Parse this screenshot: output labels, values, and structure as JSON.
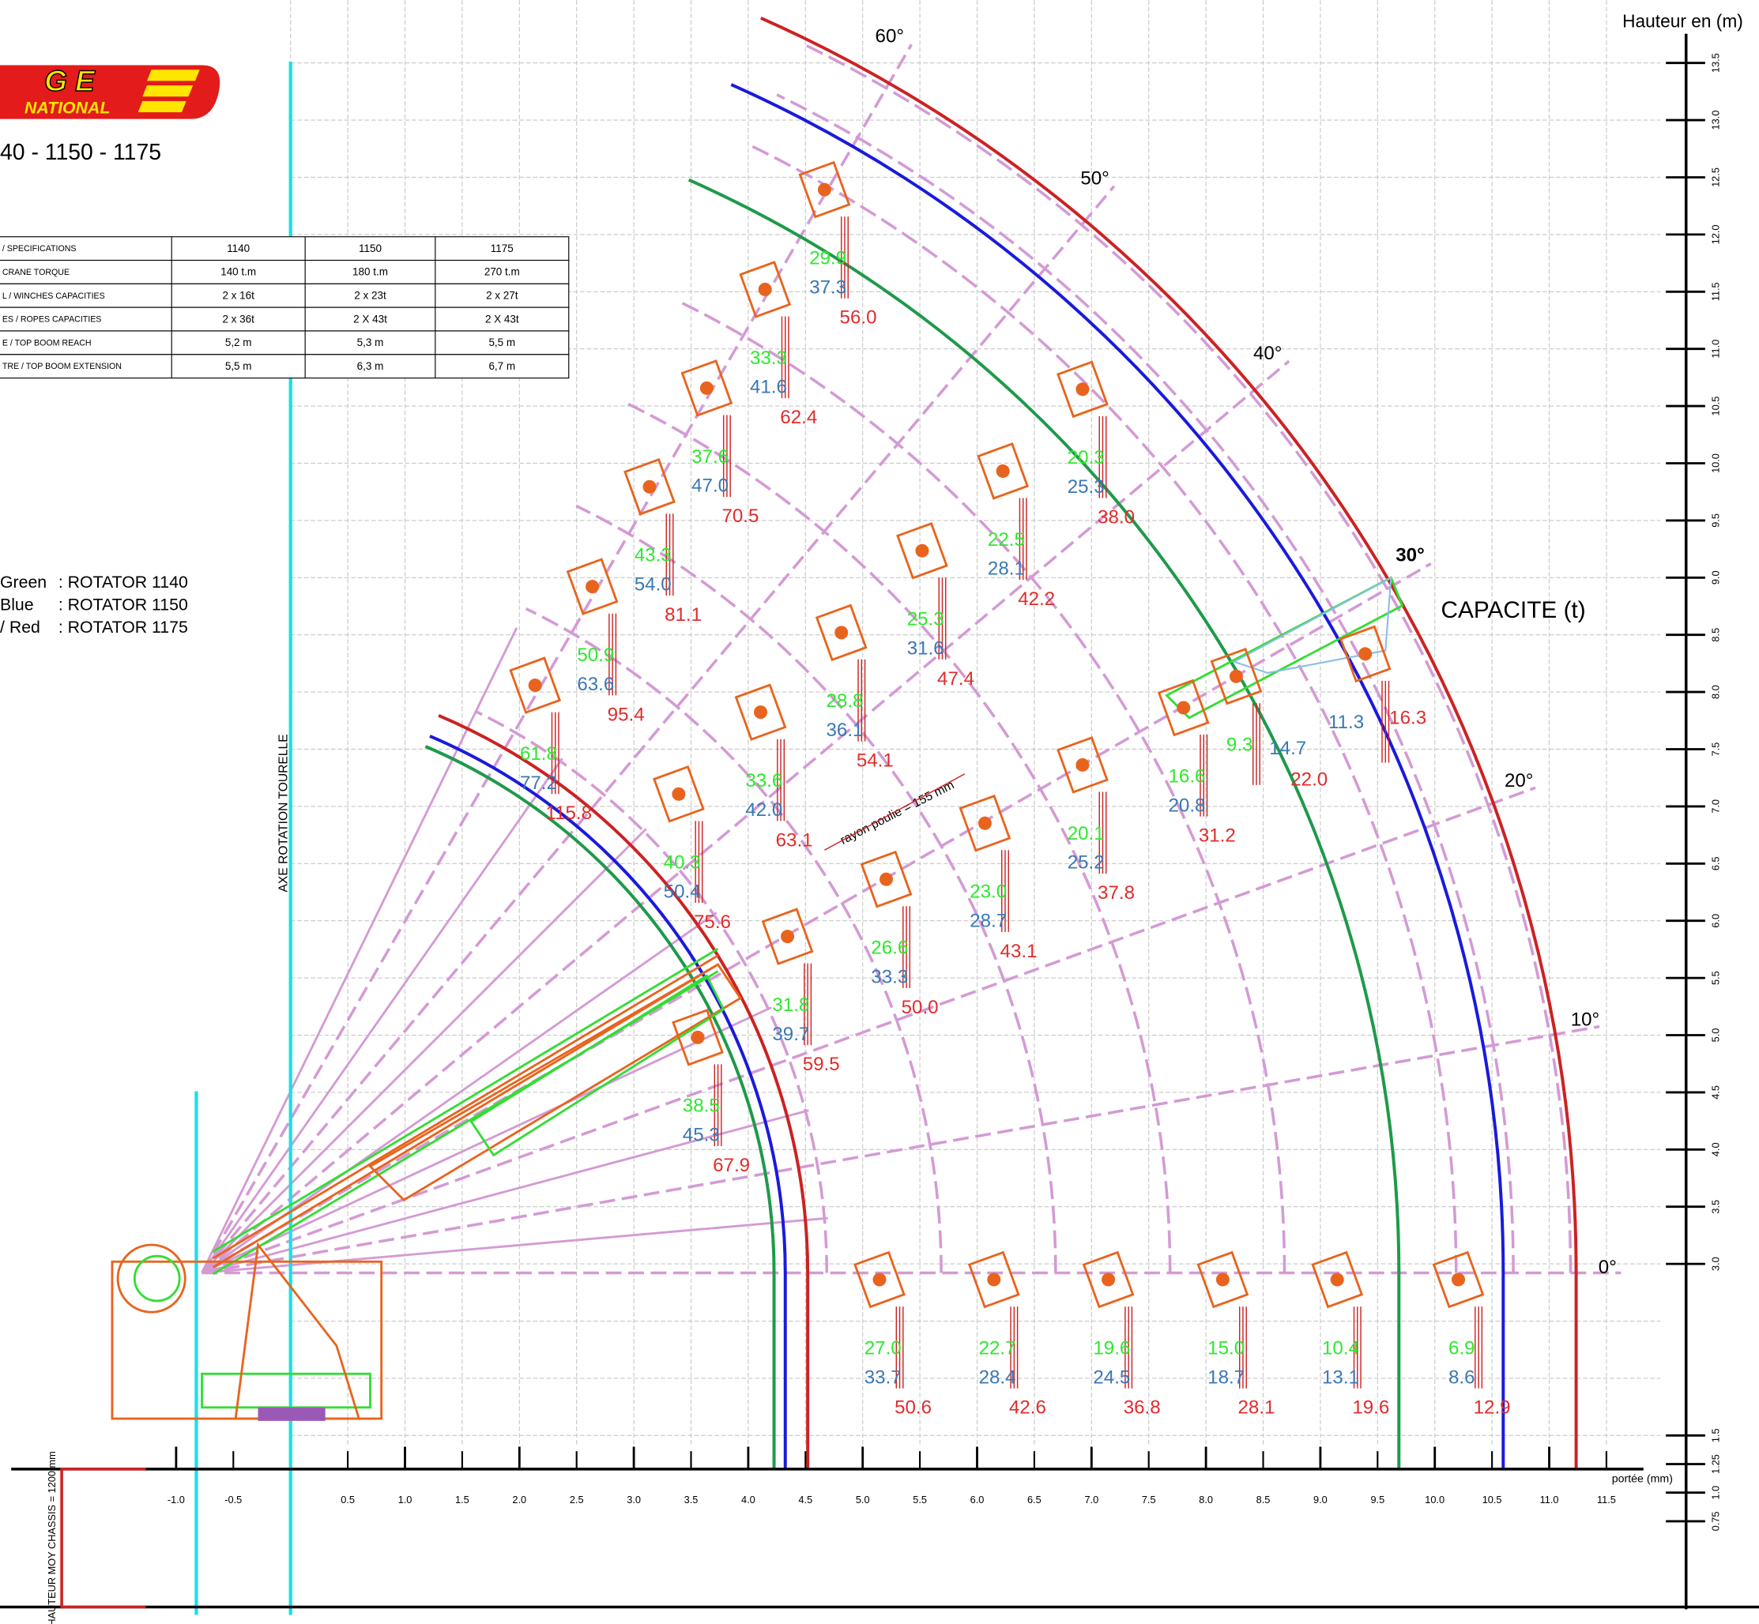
{
  "logo": {
    "top": "G E",
    "bottom": "NATIONAL"
  },
  "title": "40 - 1150 - 1175",
  "spec_table": {
    "rows": [
      [
        "/ SPECIFICATIONS",
        "1140",
        "1150",
        "1175"
      ],
      [
        "CRANE TORQUE",
        "140 t.m",
        "180 t.m",
        "270 t.m"
      ],
      [
        "L / WINCHES CAPACITIES",
        "2 x 16t",
        "2 x 23t",
        "2 x 27t"
      ],
      [
        "ES / ROPES CAPACITIES",
        "2 x 36t",
        "2 X 43t",
        "2 X 43t"
      ],
      [
        "E / TOP BOOM REACH",
        "5,2 m",
        "5,3 m",
        "5,5 m"
      ],
      [
        "TRE / TOP BOOM EXTENSION",
        "5,5 m",
        "6,3 m",
        "6,7 m"
      ]
    ]
  },
  "legend": [
    {
      "color": "Green",
      "label": ": ROTATOR 1140"
    },
    {
      "color": "Blue",
      "label": ": ROTATOR 1150"
    },
    {
      "color": "/ Red",
      "label": ": ROTATOR 1175"
    }
  ],
  "axis_labels": {
    "height": "Hauteur en (m)",
    "reach": "portée (mm)",
    "rotation_axis": "AXE ROTATION TOURELLE",
    "chassis_height": "HAUTEUR MOY CHASSIS = 1200 mm"
  },
  "capacity_title": "CAPACITE (t)",
  "pulley_note": "rayon  poulie = 155 mm",
  "angles": [
    "60°",
    "50°",
    "40°",
    "30°",
    "20°",
    "10°",
    "0°"
  ],
  "reach_ticks": [
    {
      "value": -1,
      "label": "-1.0"
    },
    -0.5,
    0.5,
    {
      "value": 1,
      "label": "1.0"
    },
    1.5,
    {
      "value": 2,
      "label": "2.0"
    },
    2.5,
    {
      "value": 3,
      "label": "3.0"
    },
    3.5,
    {
      "value": 4,
      "label": "4.0"
    },
    4.5,
    {
      "value": 5,
      "label": "5.0"
    },
    5.5,
    {
      "value": 6,
      "label": "6.0"
    },
    6.5,
    {
      "value": 7,
      "label": "7.0"
    },
    7.5,
    {
      "value": 8,
      "label": "8.0"
    },
    8.5,
    {
      "value": 9,
      "label": "9.0"
    },
    9.5,
    {
      "value": 10,
      "label": "10.0"
    },
    10.5,
    {
      "value": 11,
      "label": "11.0"
    },
    11.5
  ],
  "height_ticks": [
    13.5,
    {
      "value": 13,
      "label": "13.0"
    },
    12.5,
    {
      "value": 12,
      "label": "12.0"
    },
    11.5,
    {
      "value": 11,
      "label": "11.0"
    },
    10.5,
    {
      "value": 10,
      "label": "10.0"
    },
    9.5,
    {
      "value": 9,
      "label": "9.0"
    },
    8.5,
    {
      "value": 8,
      "label": "8.0"
    },
    7.5,
    {
      "value": 7,
      "label": "7.0"
    },
    6.5,
    {
      "value": 6,
      "label": "6.0"
    },
    5.5,
    {
      "value": 5,
      "label": "5.0"
    },
    4.5,
    {
      "value": 4,
      "label": "4.0"
    },
    3.5,
    {
      "value": 3,
      "label": "3.0"
    },
    1.5,
    1.25,
    {
      "value": 1,
      "label": "1.0"
    },
    0.75
  ],
  "capacities": [
    {
      "green": "29.9",
      "blue": "37.3",
      "red": "56.0"
    },
    {
      "green": "33.3",
      "blue": "41.6",
      "red": "62.4"
    },
    {
      "green": "37.6",
      "blue": "47.0",
      "red": "70.5"
    },
    {
      "green": "43.3",
      "blue": "54.0",
      "red": "81.1"
    },
    {
      "green": "50.9",
      "blue": "63.6",
      "red": "95.4"
    },
    {
      "green": "61.8",
      "blue": "77.2",
      "red": "115.8"
    },
    {
      "green": "20.3",
      "blue": "25.3",
      "red": "38.0"
    },
    {
      "green": "22.5",
      "blue": "28.1",
      "red": "42.2"
    },
    {
      "green": "25.3",
      "blue": "31.6",
      "red": "47.4"
    },
    {
      "green": "28.8",
      "blue": "36.1",
      "red": "54.1"
    },
    {
      "green": "33.6",
      "blue": "42.0",
      "red": "63.1"
    },
    {
      "green": "40.3",
      "blue": "50.4",
      "red": "75.6"
    },
    {
      "blue": "11.3",
      "red": "16.3"
    },
    {
      "green": "9.3",
      "blue": "14.7",
      "red": "22.0"
    },
    {
      "green": "16.6",
      "blue": "20.8",
      "red": "31.2"
    },
    {
      "green": "20.1",
      "blue": "25.2",
      "red": "37.8"
    },
    {
      "green": "23.0",
      "blue": "28.7",
      "red": "43.1"
    },
    {
      "green": "26.6",
      "blue": "33.3",
      "red": "50.0"
    },
    {
      "green": "31.8",
      "blue": "39.7",
      "red": "59.5"
    },
    {
      "green": "38.5",
      "blue": "45.3",
      "red": "67.9"
    },
    {
      "green": "27.0",
      "blue": "33.7",
      "red": "50.6"
    },
    {
      "green": "22.7",
      "blue": "28.4",
      "red": "42.6"
    },
    {
      "green": "19.6",
      "blue": "24.5",
      "red": "36.8"
    },
    {
      "green": "15.0",
      "blue": "18.7",
      "red": "28.1"
    },
    {
      "green": "10.4",
      "blue": "13.1",
      "red": "19.6"
    },
    {
      "green": "6.9",
      "blue": "8.6",
      "red": "12.9"
    }
  ]
}
